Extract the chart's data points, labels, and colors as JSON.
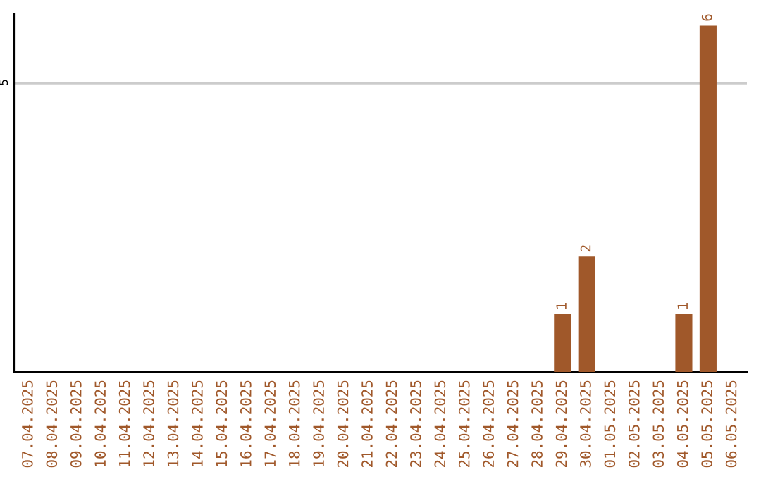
{
  "chart_data": {
    "type": "bar",
    "categories": [
      "07.04.2025",
      "08.04.2025",
      "09.04.2025",
      "10.04.2025",
      "11.04.2025",
      "12.04.2025",
      "13.04.2025",
      "14.04.2025",
      "15.04.2025",
      "16.04.2025",
      "17.04.2025",
      "18.04.2025",
      "19.04.2025",
      "20.04.2025",
      "21.04.2025",
      "22.04.2025",
      "23.04.2025",
      "24.04.2025",
      "25.04.2025",
      "26.04.2025",
      "27.04.2025",
      "28.04.2025",
      "29.04.2025",
      "30.04.2025",
      "01.05.2025",
      "02.05.2025",
      "03.05.2025",
      "04.05.2025",
      "05.05.2025",
      "06.05.2025"
    ],
    "values": [
      null,
      null,
      null,
      null,
      null,
      null,
      null,
      null,
      null,
      null,
      null,
      null,
      null,
      null,
      null,
      null,
      null,
      null,
      null,
      null,
      null,
      null,
      1,
      2,
      null,
      null,
      null,
      1,
      6,
      null
    ],
    "color": "#a0582a",
    "ylim": [
      0,
      6.2
    ],
    "yticks": [
      5
    ],
    "grid": "y",
    "data_labels": true
  }
}
